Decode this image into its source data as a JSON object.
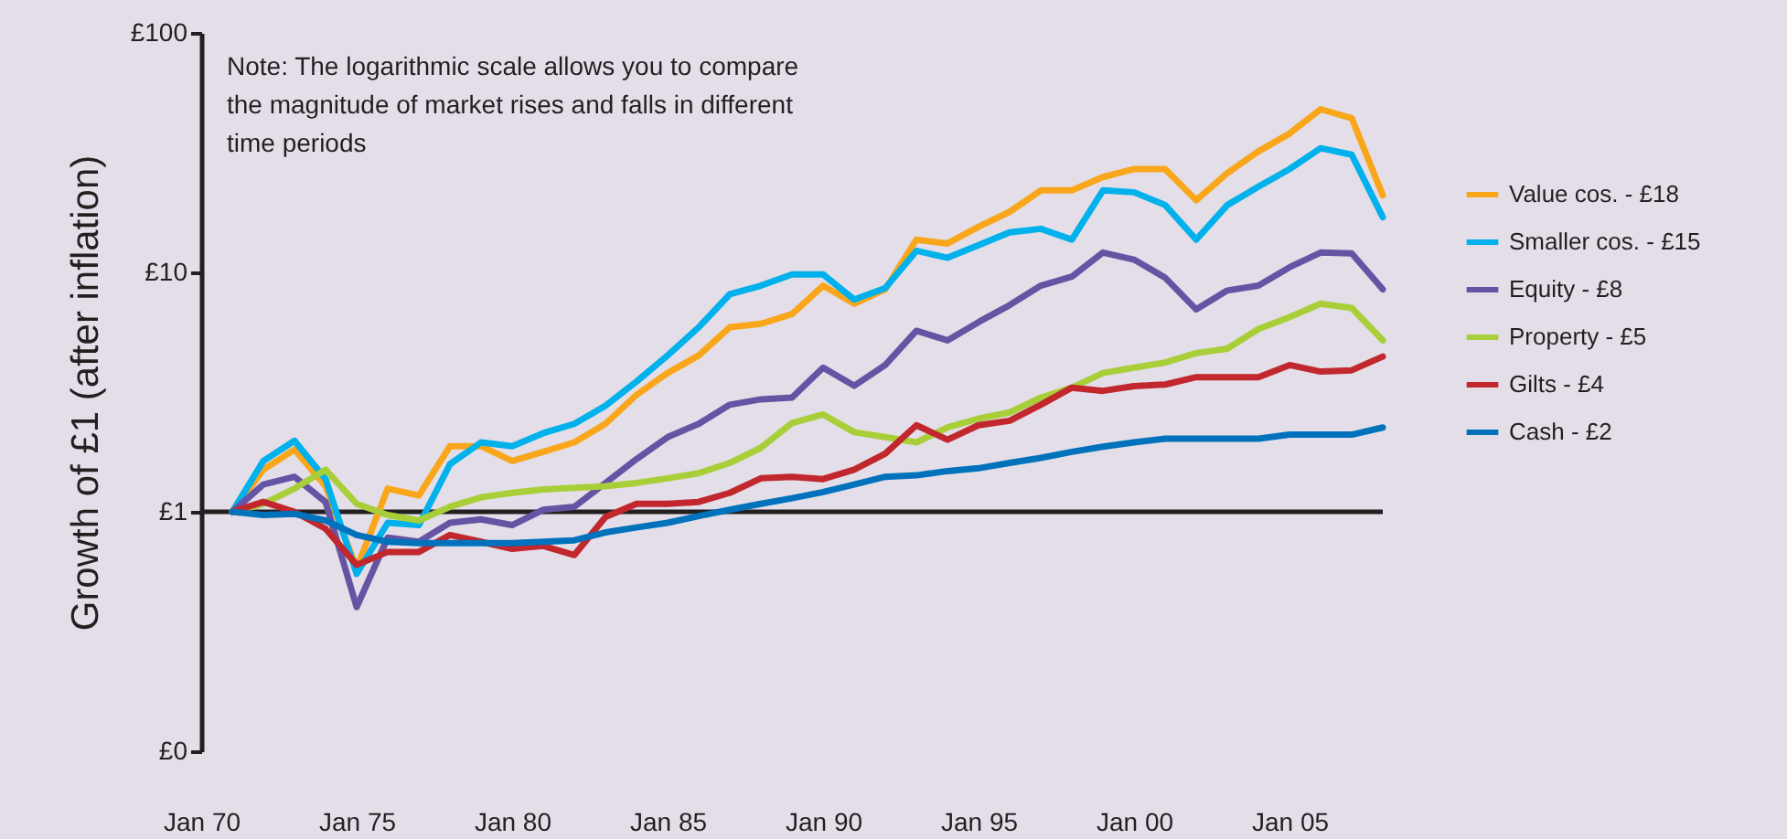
{
  "chart_data": {
    "type": "line",
    "ylabel": "Growth of £1 (after inflation)",
    "log": "y",
    "legend": "right",
    "annotations": [
      "Note: The logarithmic scale allows you to compare the magnitude of market rises and falls in different time periods"
    ],
    "x": [
      "1971",
      "1972",
      "1973",
      "1974",
      "1975",
      "1976",
      "1977",
      "1978",
      "1979",
      "1980",
      "1981",
      "1982",
      "1983",
      "1984",
      "1985",
      "1986",
      "1987",
      "1988",
      "1989",
      "1990",
      "1991",
      "1992",
      "1993",
      "1994",
      "1995",
      "1996",
      "1997",
      "1998",
      "1999",
      "2000",
      "2001",
      "2002",
      "2003",
      "2004",
      "2005",
      "2006",
      "2007",
      "2008"
    ],
    "xlim": [
      "1970-01",
      "2008-01"
    ],
    "xticks": [
      {
        "value": "1970-01",
        "label": "Jan 70"
      },
      {
        "value": "1975-01",
        "label": "Jan 75"
      },
      {
        "value": "1980-01",
        "label": "Jan 80"
      },
      {
        "value": "1985-01",
        "label": "Jan 85"
      },
      {
        "value": "1990-01",
        "label": "Jan 90"
      },
      {
        "value": "1995-01",
        "label": "Jan 95"
      },
      {
        "value": "2000-01",
        "label": "Jan 00"
      },
      {
        "value": "2005-01",
        "label": "Jan 05"
      }
    ],
    "ylim": [
      0.1,
      100
    ],
    "yticks": [
      {
        "value": 0.1,
        "label": "£0"
      },
      {
        "value": 1,
        "label": "£1"
      },
      {
        "value": 10,
        "label": "£10"
      },
      {
        "value": 100,
        "label": "£100"
      }
    ],
    "ref_lines": [
      {
        "axis": "y",
        "value": 1,
        "color": "#231f20"
      }
    ],
    "series": [
      {
        "name": "Value cos. - £18",
        "color": "#f9a61a",
        "values": [
          1.0,
          1.5,
          1.82,
          1.28,
          0.58,
          1.25,
          1.17,
          1.88,
          1.88,
          1.63,
          1.78,
          1.95,
          2.33,
          3.08,
          3.8,
          4.5,
          5.9,
          6.1,
          6.7,
          8.8,
          7.4,
          8.5,
          13.7,
          13.2,
          15.5,
          17.9,
          22,
          22,
          25,
          27,
          27,
          20,
          26,
          32,
          38,
          48,
          44,
          21
        ]
      },
      {
        "name": "Smaller cos. - £15",
        "color": "#00b1eb",
        "values": [
          1.0,
          1.63,
          1.98,
          1.37,
          0.55,
          0.9,
          0.88,
          1.58,
          1.95,
          1.88,
          2.13,
          2.33,
          2.77,
          3.5,
          4.5,
          5.9,
          8.1,
          8.8,
          9.8,
          9.8,
          7.7,
          8.6,
          12.3,
          11.5,
          13.0,
          14.7,
          15.2,
          13.7,
          22,
          21.6,
          19.1,
          13.7,
          19.1,
          22.8,
          27,
          33,
          31,
          17
        ]
      },
      {
        "name": "Equity - £8",
        "color": "#6554a3",
        "values": [
          1.0,
          1.3,
          1.4,
          1.1,
          0.4,
          0.78,
          0.75,
          0.9,
          0.93,
          0.88,
          1.02,
          1.05,
          1.32,
          1.66,
          2.05,
          2.33,
          2.8,
          2.95,
          3.0,
          4.0,
          3.36,
          4.1,
          5.7,
          5.2,
          6.2,
          7.3,
          8.8,
          9.6,
          12.1,
          11.3,
          9.5,
          7.0,
          8.4,
          8.8,
          10.5,
          12.1,
          12.0,
          8.5
        ]
      },
      {
        "name": "Property - £5",
        "color": "#a8cf38",
        "values": [
          1.0,
          1.08,
          1.25,
          1.5,
          1.08,
          0.97,
          0.92,
          1.05,
          1.15,
          1.2,
          1.24,
          1.26,
          1.28,
          1.32,
          1.38,
          1.45,
          1.6,
          1.85,
          2.35,
          2.55,
          2.15,
          2.05,
          1.95,
          2.25,
          2.45,
          2.6,
          3.0,
          3.3,
          3.8,
          4.0,
          4.2,
          4.6,
          4.8,
          5.8,
          6.5,
          7.4,
          7.1,
          5.2
        ]
      },
      {
        "name": "Gilts - £4",
        "color": "#c1272d",
        "values": [
          1.0,
          1.1,
          1.0,
          0.85,
          0.6,
          0.68,
          0.68,
          0.8,
          0.75,
          0.7,
          0.72,
          0.66,
          0.95,
          1.08,
          1.08,
          1.1,
          1.2,
          1.38,
          1.4,
          1.37,
          1.5,
          1.75,
          2.3,
          2.0,
          2.3,
          2.4,
          2.8,
          3.3,
          3.2,
          3.35,
          3.4,
          3.65,
          3.65,
          3.65,
          4.1,
          3.85,
          3.9,
          4.45
        ]
      },
      {
        "name": "Cash - £2",
        "color": "#0072bc",
        "values": [
          1.0,
          0.97,
          0.98,
          0.92,
          0.8,
          0.75,
          0.74,
          0.74,
          0.74,
          0.74,
          0.75,
          0.76,
          0.82,
          0.86,
          0.9,
          0.96,
          1.02,
          1.08,
          1.14,
          1.21,
          1.3,
          1.4,
          1.42,
          1.48,
          1.52,
          1.6,
          1.68,
          1.78,
          1.87,
          1.95,
          2.02,
          2.02,
          2.02,
          2.02,
          2.1,
          2.1,
          2.1,
          2.25
        ]
      }
    ]
  }
}
